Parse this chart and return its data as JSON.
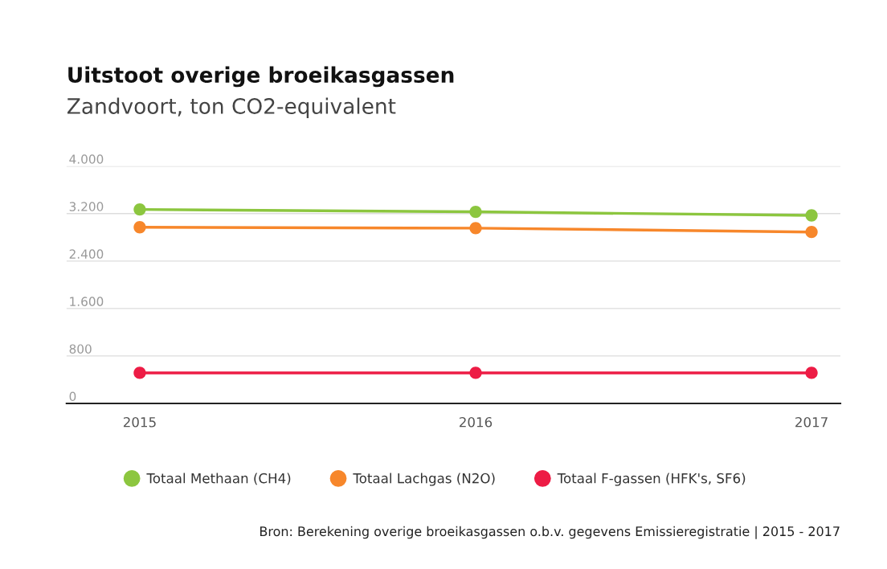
{
  "chart_data": {
    "type": "line",
    "title": "Uitstoot overige broeikasgassen",
    "subtitle": "Zandvoort, ton CO2-equivalent",
    "categories": [
      "2015",
      "2016",
      "2017"
    ],
    "series": [
      {
        "name": "Totaal Methaan (CH4)",
        "color": "#8cc63f",
        "values": [
          3270,
          3230,
          3170
        ]
      },
      {
        "name": "Totaal Lachgas (N2O)",
        "color": "#f7872b",
        "values": [
          2970,
          2955,
          2890
        ]
      },
      {
        "name": "Totaal F-gassen (HFK's, SF6)",
        "color": "#ed1c45",
        "values": [
          515,
          515,
          515
        ]
      }
    ],
    "ylim": [
      0,
      4000
    ],
    "yticks": [
      0,
      {
        "value": 800,
        "label": "800"
      },
      {
        "value": 1600,
        "label": "1.600"
      },
      {
        "value": 2400,
        "label": "2.400"
      },
      {
        "value": 3200,
        "label": "3.200"
      },
      {
        "value": 4000,
        "label": "4.000"
      }
    ],
    "grid": "y",
    "marker": "circle",
    "line_style": "solid",
    "legend": "bottom",
    "annotations": [
      "Bron: Berekening overige broeikasgassen o.b.v. gegevens Emissieregistratie | 2015 - 2017"
    ]
  }
}
